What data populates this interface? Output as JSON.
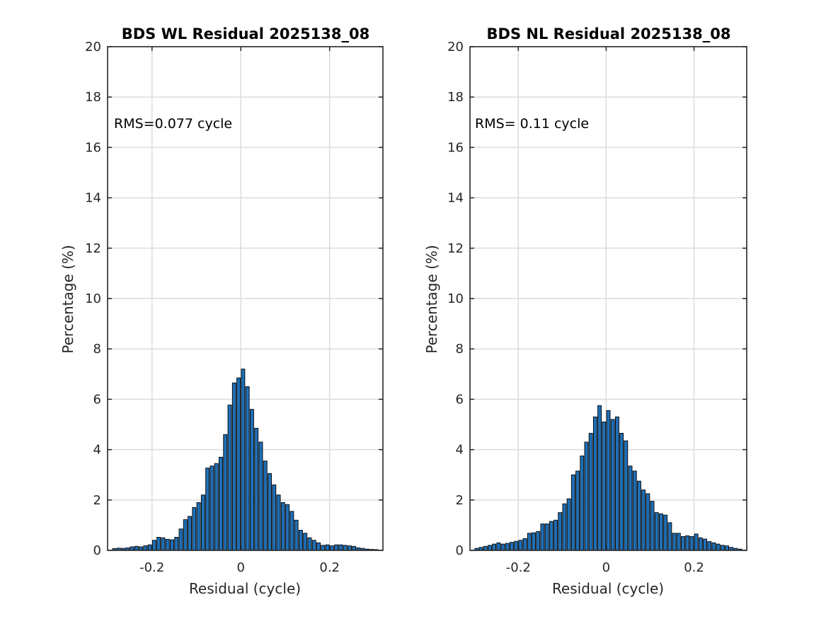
{
  "chart_data": [
    {
      "type": "bar",
      "title": "BDS WL Residual 2025138_08",
      "xlabel": "Residual (cycle)",
      "ylabel": "Percentage (%)",
      "annotation": "RMS=0.077 cycle",
      "xlim": [
        -0.3,
        0.32
      ],
      "ylim": [
        0,
        20
      ],
      "xticks": [
        -0.2,
        0,
        0.2
      ],
      "xtick_labels": [
        "-0.2",
        "0",
        "0.2"
      ],
      "yticks": [
        0,
        2,
        4,
        6,
        8,
        10,
        12,
        14,
        16,
        18,
        20
      ],
      "ytick_labels": [
        "0",
        "2",
        "4",
        "6",
        "8",
        "10",
        "12",
        "14",
        "16",
        "18",
        "20"
      ],
      "grid": true,
      "bar_color": "#1f6fb5",
      "bin_width": 0.01,
      "x": [
        -0.285,
        -0.275,
        -0.265,
        -0.255,
        -0.245,
        -0.235,
        -0.225,
        -0.215,
        -0.205,
        -0.195,
        -0.185,
        -0.175,
        -0.165,
        -0.155,
        -0.145,
        -0.135,
        -0.125,
        -0.115,
        -0.105,
        -0.095,
        -0.085,
        -0.075,
        -0.065,
        -0.055,
        -0.045,
        -0.035,
        -0.025,
        -0.015,
        -0.005,
        0.005,
        0.015,
        0.025,
        0.035,
        0.045,
        0.055,
        0.065,
        0.075,
        0.085,
        0.095,
        0.105,
        0.115,
        0.125,
        0.135,
        0.145,
        0.155,
        0.165,
        0.175,
        0.185,
        0.195,
        0.205,
        0.215,
        0.225,
        0.235,
        0.245,
        0.255,
        0.265,
        0.275,
        0.285,
        0.295,
        0.305
      ],
      "values": [
        0.07,
        0.09,
        0.08,
        0.1,
        0.14,
        0.16,
        0.14,
        0.18,
        0.22,
        0.4,
        0.52,
        0.5,
        0.44,
        0.42,
        0.52,
        0.85,
        1.22,
        1.35,
        1.7,
        1.9,
        2.2,
        3.27,
        3.35,
        3.45,
        3.7,
        4.6,
        5.77,
        6.65,
        6.85,
        7.2,
        6.5,
        5.6,
        4.85,
        4.3,
        3.55,
        3.05,
        2.6,
        2.2,
        1.9,
        1.82,
        1.55,
        1.2,
        0.8,
        0.68,
        0.5,
        0.4,
        0.3,
        0.2,
        0.22,
        0.18,
        0.22,
        0.22,
        0.2,
        0.18,
        0.16,
        0.1,
        0.08,
        0.05,
        0.04,
        0.03
      ]
    },
    {
      "type": "bar",
      "title": "BDS NL Residual 2025138_08",
      "xlabel": "Residual (cycle)",
      "ylabel": "Percentage (%)",
      "annotation": "RMS= 0.11 cycle",
      "xlim": [
        -0.31,
        0.32
      ],
      "ylim": [
        0,
        20
      ],
      "xticks": [
        -0.2,
        0,
        0.2
      ],
      "xtick_labels": [
        "-0.2",
        "0",
        "0.2"
      ],
      "yticks": [
        0,
        2,
        4,
        6,
        8,
        10,
        12,
        14,
        16,
        18,
        20
      ],
      "ytick_labels": [
        "0",
        "2",
        "4",
        "6",
        "8",
        "10",
        "12",
        "14",
        "16",
        "18",
        "20"
      ],
      "grid": true,
      "bar_color": "#1f6fb5",
      "bin_width": 0.01,
      "x": [
        -0.295,
        -0.285,
        -0.275,
        -0.265,
        -0.255,
        -0.245,
        -0.235,
        -0.225,
        -0.215,
        -0.205,
        -0.195,
        -0.185,
        -0.175,
        -0.165,
        -0.155,
        -0.145,
        -0.135,
        -0.125,
        -0.115,
        -0.105,
        -0.095,
        -0.085,
        -0.075,
        -0.065,
        -0.055,
        -0.045,
        -0.035,
        -0.025,
        -0.015,
        -0.005,
        0.005,
        0.015,
        0.025,
        0.035,
        0.045,
        0.055,
        0.065,
        0.075,
        0.085,
        0.095,
        0.105,
        0.115,
        0.125,
        0.135,
        0.145,
        0.155,
        0.165,
        0.175,
        0.185,
        0.195,
        0.205,
        0.215,
        0.225,
        0.235,
        0.245,
        0.255,
        0.265,
        0.275,
        0.285,
        0.295,
        0.305
      ],
      "values": [
        0.08,
        0.12,
        0.16,
        0.2,
        0.25,
        0.3,
        0.25,
        0.28,
        0.32,
        0.36,
        0.4,
        0.47,
        0.68,
        0.7,
        0.75,
        1.05,
        1.05,
        1.15,
        1.2,
        1.5,
        1.85,
        2.05,
        3.0,
        3.15,
        3.75,
        4.3,
        4.65,
        5.3,
        5.75,
        5.1,
        5.55,
        5.2,
        5.3,
        4.65,
        4.35,
        3.35,
        3.15,
        2.75,
        2.4,
        2.25,
        1.95,
        1.5,
        1.45,
        1.4,
        1.1,
        0.68,
        0.68,
        0.55,
        0.58,
        0.55,
        0.65,
        0.5,
        0.45,
        0.35,
        0.3,
        0.25,
        0.2,
        0.18,
        0.12,
        0.08,
        0.05
      ]
    }
  ]
}
